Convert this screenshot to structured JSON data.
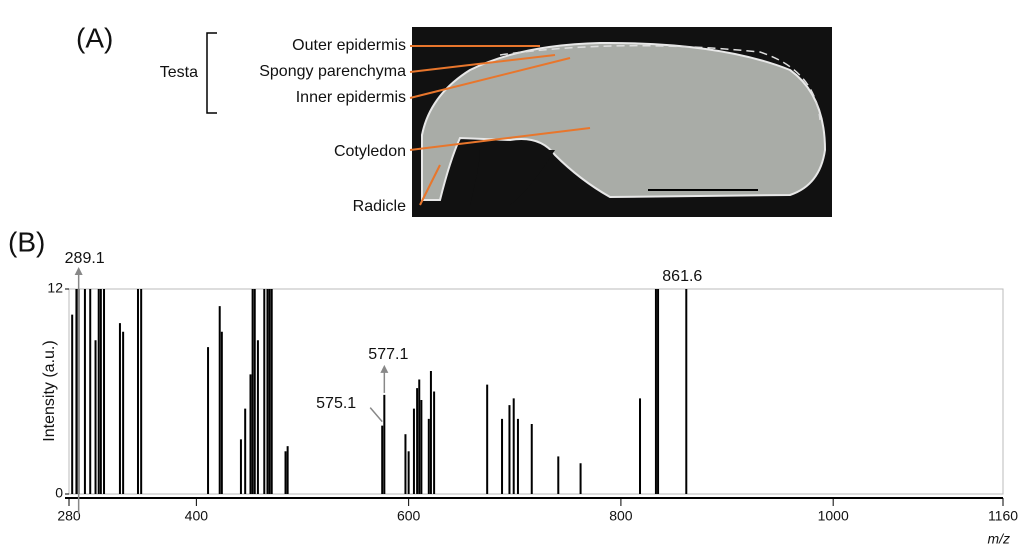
{
  "panel_a": {
    "label": "(A)",
    "bracket_label": "Testa",
    "labels": [
      "Outer epidermis",
      "Spongy parenchyma",
      "Inner epidermis",
      "Cotyledon",
      "Radicle"
    ]
  },
  "chart_data": {
    "type": "stem",
    "panel_label": "(B)",
    "y_label": "Intensity (a.u.)",
    "x_label": "m/z",
    "color": "#000000",
    "x": [
      283,
      287,
      289.1,
      295,
      300,
      305,
      308,
      310,
      313,
      328,
      331,
      345,
      348,
      411,
      422,
      424,
      442,
      446,
      451,
      453,
      455,
      458,
      464,
      467,
      469,
      471,
      484,
      486,
      575.1,
      577.1,
      597,
      600,
      605,
      608,
      610,
      612,
      619,
      621,
      624,
      674,
      688,
      695,
      699,
      703,
      716,
      741,
      762,
      818,
      833,
      835,
      861.6
    ],
    "values": [
      10.5,
      12,
      12,
      12,
      12,
      9,
      12,
      12,
      12,
      10,
      9.5,
      12,
      12,
      8.6,
      11,
      9.5,
      3.2,
      5,
      7,
      12,
      12,
      9,
      12,
      12,
      12,
      12,
      2.5,
      2.8,
      4,
      5.8,
      3.5,
      2.5,
      5,
      6.2,
      6.7,
      5.5,
      4.4,
      7.2,
      6,
      6.4,
      4.4,
      5.2,
      5.6,
      4.4,
      4.1,
      2.2,
      1.8,
      5.6,
      12,
      12,
      12
    ],
    "annotations": [
      {
        "label": "289.1",
        "x": 289.1
      },
      {
        "label": "575.1",
        "x": 575.1
      },
      {
        "label": "577.1",
        "x": 577.1
      },
      {
        "label": "861.6",
        "x": 861.6
      }
    ],
    "xlim": [
      280,
      1160
    ],
    "ylim": [
      0,
      12
    ],
    "xticks": [
      280,
      400,
      600,
      800,
      1000,
      1160
    ],
    "yticks": [
      0,
      12
    ]
  }
}
